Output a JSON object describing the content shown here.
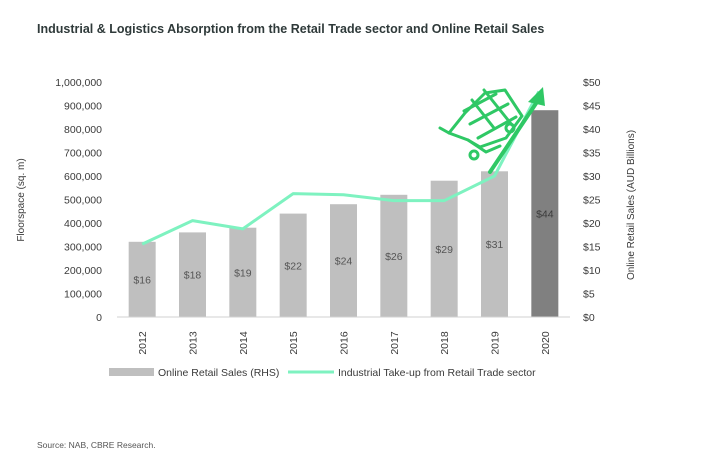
{
  "title": "Industrial & Logistics Absorption from the Retail Trade sector and Online Retail Sales",
  "source": "Source: NAB, CBRE Research.",
  "colors": {
    "bar": "#bfbfbf",
    "bar_highlight": "#808080",
    "line": "#7ef2c0",
    "arrow": "#2fc865",
    "text": "#3a3a3a",
    "bar_label": "#555555"
  },
  "icons": [
    "shopping-cart-icon"
  ],
  "chart_data": {
    "type": "bar+line",
    "categories": [
      "2012",
      "2013",
      "2014",
      "2015",
      "2016",
      "2017",
      "2018",
      "2019",
      "2020"
    ],
    "left_axis": {
      "label": "Floorspace (sq. m)",
      "range": [
        0,
        1000000
      ],
      "ticks": [
        0,
        100000,
        200000,
        300000,
        400000,
        500000,
        600000,
        700000,
        800000,
        900000,
        1000000
      ],
      "tick_labels": [
        "0",
        "100,000",
        "200,000",
        "300,000",
        "400,000",
        "500,000",
        "600,000",
        "700,000",
        "800,000",
        "900,000",
        "1,000,000"
      ]
    },
    "right_axis": {
      "label": "Online Retail Sales (AUD Billions)",
      "range": [
        0,
        50
      ],
      "ticks": [
        0,
        5,
        10,
        15,
        20,
        25,
        30,
        35,
        40,
        45,
        50
      ],
      "tick_labels": [
        "$0",
        "$5",
        "$10",
        "$15",
        "$20",
        "$25",
        "$30",
        "$35",
        "$40",
        "$45",
        "$50"
      ]
    },
    "series": [
      {
        "name": "Online Retail Sales (RHS)",
        "type": "bar",
        "axis": "right",
        "values": [
          16,
          18,
          19,
          22,
          24,
          26,
          29,
          31,
          44
        ],
        "labels": [
          "$16",
          "$18",
          "$19",
          "$22",
          "$24",
          "$26",
          "$29",
          "$31",
          "$44"
        ],
        "highlight_index": 8
      },
      {
        "name": "Industrial Take-up from Retail Trade sector",
        "type": "line",
        "axis": "left",
        "values": [
          310000,
          410000,
          375000,
          525000,
          520000,
          495000,
          495000,
          600000,
          960000
        ]
      }
    ],
    "grid": false,
    "legend": "bottom"
  }
}
